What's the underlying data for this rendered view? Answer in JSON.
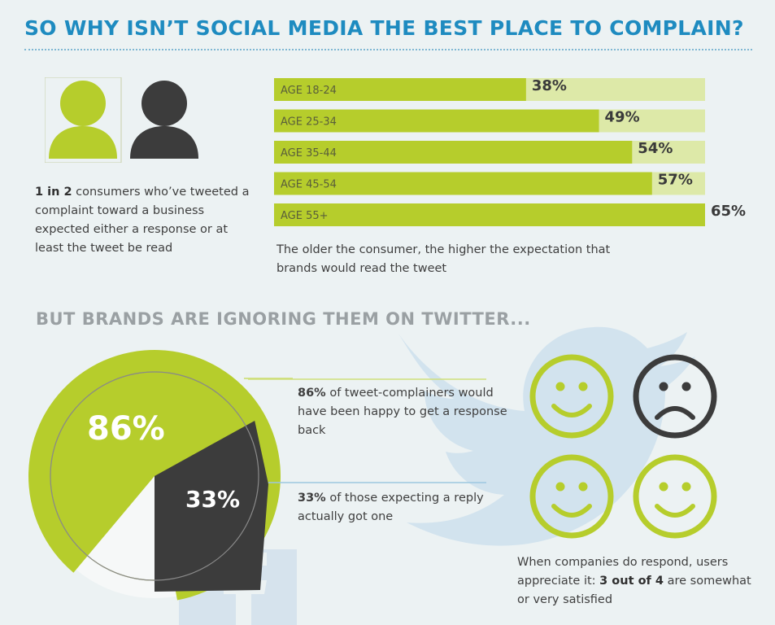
{
  "header": {
    "title": "SO WHY ISN’T SOCIAL MEDIA THE BEST PLACE TO COMPLAIN?"
  },
  "consumers_stat": {
    "highlight": "1 in 2",
    "text": " consumers who’ve tweeted a complaint toward a business expected either a response or at least the tweet be read"
  },
  "colors": {
    "accent_green": "#b6cd2c",
    "dark_gray": "#3c3c3c",
    "title_blue": "#1e8bc0",
    "bird_blue": "#d3e4ef"
  },
  "icons": {
    "person_green": "person-icon",
    "person_dark": "person-icon",
    "bird": "twitter-bird-icon",
    "facebook": "facebook-logo-icon",
    "happy": "happy-face-icon",
    "sad": "sad-face-icon"
  },
  "chart_data": [
    {
      "type": "bar",
      "orientation": "horizontal",
      "categories": [
        "AGE 18-24",
        "AGE 25-34",
        "AGE 35-44",
        "AGE 45-54",
        "AGE 55+"
      ],
      "values": [
        38,
        49,
        54,
        57,
        65
      ],
      "value_labels": [
        "38%",
        "49%",
        "54%",
        "57%",
        "65%"
      ],
      "xlim": [
        0,
        65
      ],
      "caption": "The older the consumer, the higher the expectation that brands would read the tweet"
    },
    {
      "type": "pie",
      "slices": [
        {
          "label": "86%",
          "value": 86
        },
        {
          "label": "33%",
          "value": 33
        }
      ]
    }
  ],
  "section2": {
    "title": "BUT BRANDS ARE IGNORING THEM ON TWITTER..."
  },
  "callouts": {
    "happy_response": {
      "highlight": "86%",
      "text": " of tweet-complainers would have been happy to get a response back"
    },
    "got_reply": {
      "highlight": "33%",
      "text": " of those expecting a reply actually got one"
    }
  },
  "satisfaction": {
    "faces": [
      "happy",
      "sad",
      "happy",
      "happy"
    ],
    "text_before": "When companies do respond, users appreciate it: ",
    "highlight": "3 out of 4",
    "text_after": " are somewhat or very satisfied"
  }
}
